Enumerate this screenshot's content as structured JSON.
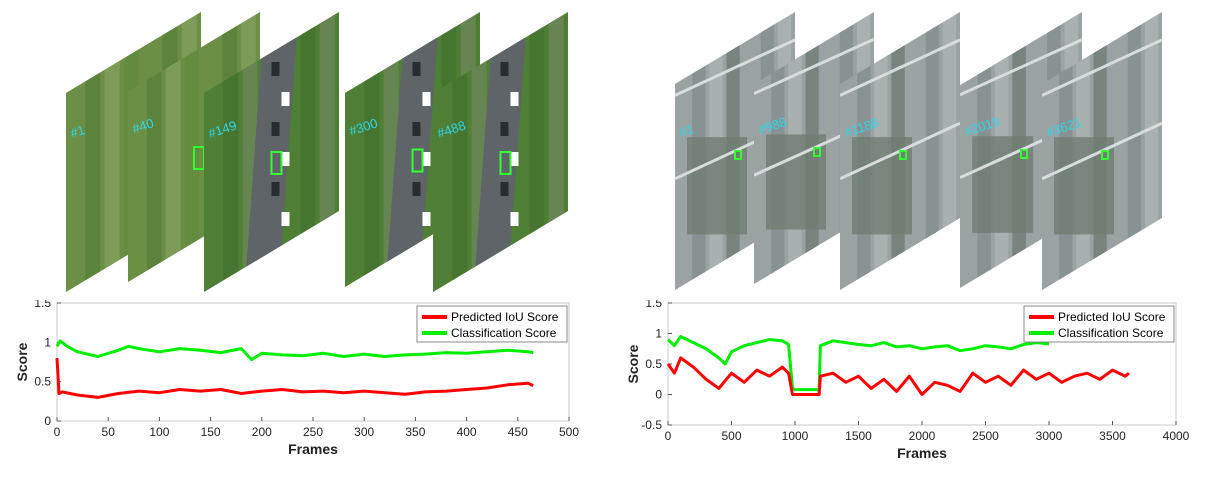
{
  "panels": [
    {
      "frames": [
        {
          "label": "#1",
          "scene": "field"
        },
        {
          "label": "#40",
          "scene": "field"
        },
        {
          "label": "#149",
          "scene": "road"
        },
        {
          "label": "#300",
          "scene": "road"
        },
        {
          "label": "#488",
          "scene": "road"
        }
      ]
    },
    {
      "frames": [
        {
          "label": "#1",
          "scene": "plaza"
        },
        {
          "label": "#988",
          "scene": "plaza"
        },
        {
          "label": "#1188",
          "scene": "plaza"
        },
        {
          "label": "#2019",
          "scene": "plaza"
        },
        {
          "label": "#3621",
          "scene": "plaza"
        }
      ]
    }
  ],
  "colors": {
    "iou": "#ff0000",
    "cls": "#00ee00",
    "box": "#33ff33",
    "frame_label": "#2fd6e8"
  },
  "chart_data": [
    {
      "type": "line",
      "xlabel": "Frames",
      "ylabel": "Score",
      "xlim": [
        0,
        500
      ],
      "ylim": [
        0,
        1.5
      ],
      "xticks": [
        "0",
        "50",
        "100",
        "150",
        "200",
        "250",
        "300",
        "350",
        "400",
        "450",
        "500"
      ],
      "yticks": [
        "0",
        "0.5",
        "1",
        "1.5"
      ],
      "legend_position": "top-right",
      "series": [
        {
          "name": "Predicted IoU Score",
          "color": "#ff0000",
          "x": [
            0,
            2,
            5,
            20,
            40,
            60,
            80,
            100,
            120,
            140,
            160,
            180,
            200,
            220,
            240,
            260,
            280,
            300,
            320,
            340,
            360,
            380,
            400,
            420,
            440,
            460,
            465
          ],
          "y": [
            0.8,
            0.35,
            0.37,
            0.33,
            0.3,
            0.35,
            0.38,
            0.36,
            0.4,
            0.38,
            0.4,
            0.35,
            0.38,
            0.4,
            0.37,
            0.38,
            0.36,
            0.38,
            0.36,
            0.34,
            0.37,
            0.38,
            0.4,
            0.42,
            0.46,
            0.48,
            0.45
          ]
        },
        {
          "name": "Classification Score",
          "color": "#00ee00",
          "x": [
            0,
            3,
            10,
            20,
            40,
            60,
            70,
            80,
            100,
            120,
            140,
            160,
            180,
            190,
            200,
            220,
            240,
            260,
            280,
            300,
            320,
            340,
            360,
            380,
            400,
            420,
            440,
            460,
            465
          ],
          "y": [
            0.95,
            1.02,
            0.95,
            0.88,
            0.82,
            0.9,
            0.95,
            0.92,
            0.88,
            0.92,
            0.9,
            0.87,
            0.92,
            0.78,
            0.86,
            0.84,
            0.83,
            0.86,
            0.82,
            0.85,
            0.82,
            0.84,
            0.85,
            0.87,
            0.86,
            0.88,
            0.9,
            0.88,
            0.87
          ]
        }
      ]
    },
    {
      "type": "line",
      "xlabel": "Frames",
      "ylabel": "Score",
      "xlim": [
        0,
        4000
      ],
      "ylim": [
        -0.5,
        1.5
      ],
      "xticks": [
        "0",
        "500",
        "1000",
        "1500",
        "2000",
        "2500",
        "3000",
        "3500",
        "4000"
      ],
      "yticks": [
        "-0.5",
        "0",
        "0.5",
        "1",
        "1.5"
      ],
      "legend_position": "top-right",
      "series": [
        {
          "name": "Predicted IoU Score",
          "color": "#ff0000",
          "x": [
            0,
            50,
            100,
            200,
            300,
            400,
            500,
            600,
            700,
            800,
            900,
            950,
            980,
            1000,
            1100,
            1190,
            1200,
            1300,
            1400,
            1500,
            1600,
            1700,
            1800,
            1900,
            2000,
            2100,
            2200,
            2300,
            2400,
            2500,
            2600,
            2700,
            2800,
            2900,
            3000,
            3100,
            3200,
            3300,
            3400,
            3500,
            3600,
            3630
          ],
          "y": [
            0.5,
            0.35,
            0.6,
            0.45,
            0.25,
            0.1,
            0.35,
            0.2,
            0.4,
            0.3,
            0.45,
            0.35,
            0.0,
            0.0,
            0.0,
            0.0,
            0.3,
            0.35,
            0.2,
            0.3,
            0.1,
            0.25,
            0.05,
            0.3,
            0.0,
            0.2,
            0.15,
            0.05,
            0.35,
            0.2,
            0.3,
            0.15,
            0.4,
            0.25,
            0.35,
            0.2,
            0.3,
            0.35,
            0.25,
            0.4,
            0.3,
            0.35
          ]
        },
        {
          "name": "Classification Score",
          "color": "#00ee00",
          "x": [
            0,
            50,
            100,
            200,
            300,
            400,
            450,
            500,
            600,
            700,
            800,
            900,
            950,
            980,
            1000,
            1100,
            1190,
            1200,
            1300,
            1400,
            1500,
            1600,
            1700,
            1800,
            1900,
            2000,
            2100,
            2200,
            2300,
            2400,
            2500,
            2600,
            2700,
            2800,
            2900,
            3000
          ],
          "y": [
            0.9,
            0.8,
            0.95,
            0.85,
            0.75,
            0.6,
            0.5,
            0.7,
            0.8,
            0.85,
            0.9,
            0.88,
            0.82,
            0.1,
            0.08,
            0.08,
            0.08,
            0.8,
            0.88,
            0.85,
            0.82,
            0.8,
            0.85,
            0.78,
            0.8,
            0.75,
            0.78,
            0.8,
            0.72,
            0.75,
            0.8,
            0.78,
            0.75,
            0.82,
            0.85,
            0.83
          ]
        }
      ]
    }
  ]
}
